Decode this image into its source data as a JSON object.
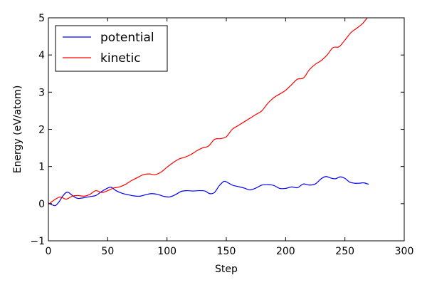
{
  "chart_data": {
    "type": "line",
    "title": "",
    "xlabel": "Step",
    "ylabel": "Energy (eV/atom)",
    "xlim": [
      0,
      300
    ],
    "ylim": [
      -1,
      5
    ],
    "xticks": [
      0,
      50,
      100,
      150,
      200,
      250,
      300
    ],
    "yticks": [
      -1,
      0,
      1,
      2,
      3,
      4,
      5
    ],
    "grid": false,
    "legend_position": "top-left",
    "series": [
      {
        "name": "potential",
        "color": "#0000ff",
        "x": [
          0,
          3,
          6,
          9,
          12,
          15,
          17,
          19,
          22,
          25,
          30,
          35,
          40,
          45,
          50,
          53,
          57,
          62,
          67,
          72,
          77,
          82,
          87,
          92,
          97,
          102,
          107,
          112,
          117,
          122,
          127,
          132,
          136,
          140,
          144,
          148,
          151,
          155,
          160,
          165,
          170,
          175,
          180,
          185,
          190,
          195,
          200,
          205,
          210,
          215,
          220,
          225,
          230,
          234,
          238,
          242,
          246,
          250,
          254,
          258,
          262,
          266,
          270
        ],
        "y": [
          0.02,
          -0.03,
          -0.05,
          0.05,
          0.2,
          0.3,
          0.3,
          0.25,
          0.18,
          0.14,
          0.16,
          0.19,
          0.22,
          0.33,
          0.42,
          0.44,
          0.35,
          0.28,
          0.24,
          0.21,
          0.2,
          0.24,
          0.27,
          0.25,
          0.2,
          0.18,
          0.24,
          0.33,
          0.35,
          0.34,
          0.35,
          0.34,
          0.27,
          0.3,
          0.48,
          0.6,
          0.57,
          0.5,
          0.46,
          0.42,
          0.37,
          0.42,
          0.5,
          0.51,
          0.49,
          0.41,
          0.41,
          0.45,
          0.43,
          0.53,
          0.5,
          0.53,
          0.67,
          0.73,
          0.69,
          0.67,
          0.72,
          0.68,
          0.58,
          0.55,
          0.55,
          0.56,
          0.52
        ]
      },
      {
        "name": "kinetic",
        "color": "#ff0000",
        "x": [
          0,
          5,
          10,
          15,
          20,
          25,
          30,
          35,
          40,
          45,
          50,
          55,
          60,
          65,
          70,
          75,
          80,
          85,
          90,
          95,
          100,
          105,
          110,
          115,
          120,
          125,
          130,
          135,
          140,
          145,
          150,
          155,
          160,
          165,
          170,
          175,
          180,
          185,
          190,
          195,
          200,
          205,
          210,
          215,
          220,
          225,
          230,
          235,
          240,
          245,
          250,
          255,
          260,
          265,
          270
        ],
        "y": [
          -0.02,
          0.1,
          0.18,
          0.12,
          0.2,
          0.22,
          0.2,
          0.25,
          0.35,
          0.3,
          0.35,
          0.42,
          0.45,
          0.52,
          0.62,
          0.7,
          0.78,
          0.8,
          0.78,
          0.85,
          0.98,
          1.1,
          1.2,
          1.25,
          1.32,
          1.42,
          1.5,
          1.55,
          1.73,
          1.75,
          1.8,
          2.0,
          2.1,
          2.2,
          2.3,
          2.4,
          2.5,
          2.7,
          2.85,
          2.95,
          3.05,
          3.2,
          3.35,
          3.38,
          3.6,
          3.75,
          3.85,
          4.0,
          4.2,
          4.22,
          4.4,
          4.6,
          4.72,
          4.85,
          5.05
        ]
      }
    ]
  }
}
